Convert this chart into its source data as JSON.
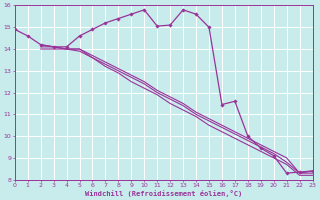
{
  "xlabel": "Windchill (Refroidissement éolien,°C)",
  "xlim": [
    0,
    23
  ],
  "ylim": [
    8,
    16
  ],
  "yticks": [
    8,
    9,
    10,
    11,
    12,
    13,
    14,
    15,
    16
  ],
  "xticks": [
    0,
    1,
    2,
    3,
    4,
    5,
    6,
    7,
    8,
    9,
    10,
    11,
    12,
    13,
    14,
    15,
    16,
    17,
    18,
    19,
    20,
    21,
    22,
    23
  ],
  "background_color": "#c8ecec",
  "line_color": "#993399",
  "grid_color": "#ffffff",
  "series": [
    {
      "x": [
        0,
        1,
        2,
        3,
        4,
        5,
        6,
        7,
        8,
        9,
        10,
        11,
        12,
        13,
        14,
        15,
        16,
        17,
        18,
        19,
        20,
        21,
        22,
        23
      ],
      "y": [
        14.9,
        14.6,
        14.2,
        14.1,
        14.1,
        14.6,
        14.9,
        15.2,
        15.4,
        15.6,
        15.8,
        15.05,
        15.1,
        15.8,
        15.6,
        15.0,
        11.45,
        11.6,
        10.0,
        9.45,
        9.1,
        8.3,
        8.35,
        8.4
      ],
      "marker": "D",
      "lw": 0.9
    },
    {
      "x": [
        2,
        3,
        4,
        5,
        6,
        7,
        8,
        9,
        10,
        11,
        12,
        13,
        14,
        15,
        16,
        17,
        18,
        19,
        20,
        21,
        22,
        23
      ],
      "y": [
        14.0,
        14.0,
        14.0,
        14.0,
        13.6,
        13.3,
        13.0,
        12.7,
        12.4,
        12.0,
        11.7,
        11.4,
        11.0,
        10.7,
        10.4,
        10.1,
        9.8,
        9.5,
        9.2,
        8.8,
        8.3,
        8.3
      ],
      "marker": null,
      "lw": 0.8
    },
    {
      "x": [
        2,
        3,
        4,
        5,
        6,
        7,
        8,
        9,
        10,
        11,
        12,
        13,
        14,
        15,
        16,
        17,
        18,
        19,
        20,
        21,
        22,
        23
      ],
      "y": [
        14.1,
        14.1,
        14.0,
        13.9,
        13.6,
        13.2,
        12.9,
        12.5,
        12.2,
        11.9,
        11.5,
        11.2,
        10.9,
        10.5,
        10.2,
        9.9,
        9.6,
        9.3,
        9.0,
        8.7,
        8.2,
        8.2
      ],
      "marker": null,
      "lw": 0.8
    },
    {
      "x": [
        2,
        3,
        4,
        5,
        6,
        7,
        8,
        9,
        10,
        11,
        12,
        13,
        14,
        15,
        16,
        17,
        18,
        19,
        20,
        21,
        22,
        23
      ],
      "y": [
        14.2,
        14.1,
        14.0,
        14.0,
        13.7,
        13.4,
        13.1,
        12.8,
        12.5,
        12.1,
        11.8,
        11.5,
        11.1,
        10.8,
        10.5,
        10.2,
        9.9,
        9.6,
        9.3,
        9.0,
        8.3,
        8.4
      ],
      "marker": null,
      "lw": 0.8
    }
  ]
}
